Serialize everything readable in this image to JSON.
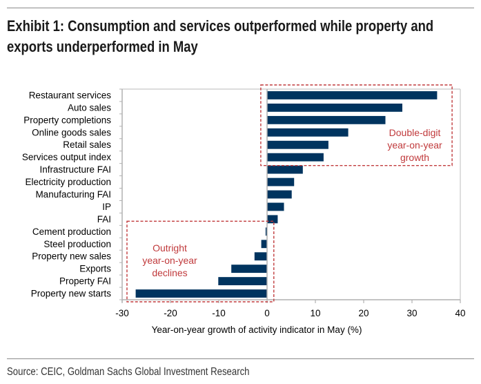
{
  "header": {
    "title_line1": "Exhibit 1: Consumption and services outperformed while property and",
    "title_line2": "exports underperformed in May"
  },
  "footer": {
    "source": "Source: CEIC, Goldman Sachs Global Investment Research"
  },
  "colors": {
    "bar": "#00345f",
    "annotation": "#c0393b",
    "axis": "#b0b0b0"
  },
  "chart_data": {
    "type": "bar",
    "orientation": "horizontal",
    "title": "Exhibit 1: Consumption and services outperformed while property and exports underperformed in May",
    "xlabel": "Year-on-year growth of activity indicator in May (%)",
    "ylabel": "",
    "xlim": [
      -30,
      40
    ],
    "xticks": [
      -30,
      -20,
      -10,
      0,
      10,
      20,
      30,
      40
    ],
    "grid": false,
    "categories": [
      "Restaurant services",
      "Auto sales",
      "Property completions",
      "Online goods sales",
      "Retail sales",
      "Services output index",
      "Infrastructure FAI",
      "Electricity production",
      "Manufacturing FAI",
      "IP",
      "FAI",
      "Cement production",
      "Steel production",
      "Property new sales",
      "Exports",
      "Property FAI",
      "Property new starts"
    ],
    "values": [
      35.2,
      28.0,
      24.5,
      16.8,
      12.7,
      11.7,
      7.4,
      5.6,
      5.1,
      3.5,
      2.2,
      -0.3,
      -1.2,
      -2.6,
      -7.4,
      -10.1,
      -27.2
    ],
    "annotations": [
      {
        "text_lines": [
          "Double-digit",
          "year-on-year",
          "growth"
        ],
        "covers_categories": [
          "Restaurant services",
          "Services output index"
        ],
        "x_range": [
          -1.3,
          38.3
        ]
      },
      {
        "text_lines": [
          "Outright",
          "year-on-year",
          "declines"
        ],
        "covers_categories": [
          "Cement production",
          "Property new starts"
        ],
        "x_range": [
          -29,
          1.4
        ]
      }
    ]
  }
}
